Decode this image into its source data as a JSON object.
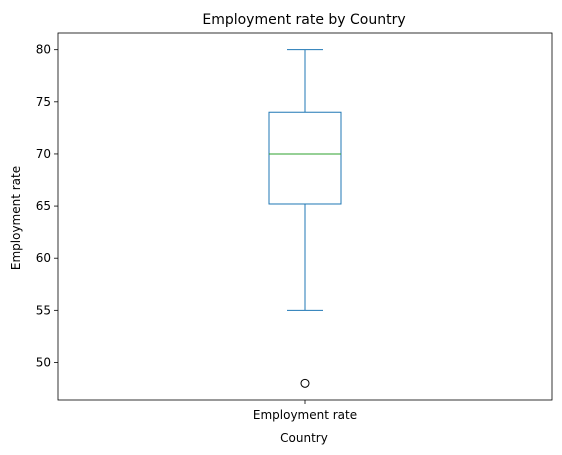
{
  "chart_data": {
    "type": "box",
    "title": "Employment rate by Country",
    "xlabel": "Country",
    "ylabel": "Employment rate",
    "categories": [
      "Employment rate"
    ],
    "ylim": [
      46.4,
      81.6
    ],
    "yticks": [
      50,
      55,
      60,
      65,
      70,
      75,
      80
    ],
    "grid": false,
    "series": [
      {
        "whisker_low": 55,
        "q1": 65.2,
        "median": 70,
        "q3": 74,
        "whisker_high": 80,
        "outliers": [
          48
        ]
      }
    ],
    "colors": {
      "box": "#1f77b4",
      "median": "#2ca02c",
      "outlier": "#000000",
      "axes": "#000000"
    }
  }
}
